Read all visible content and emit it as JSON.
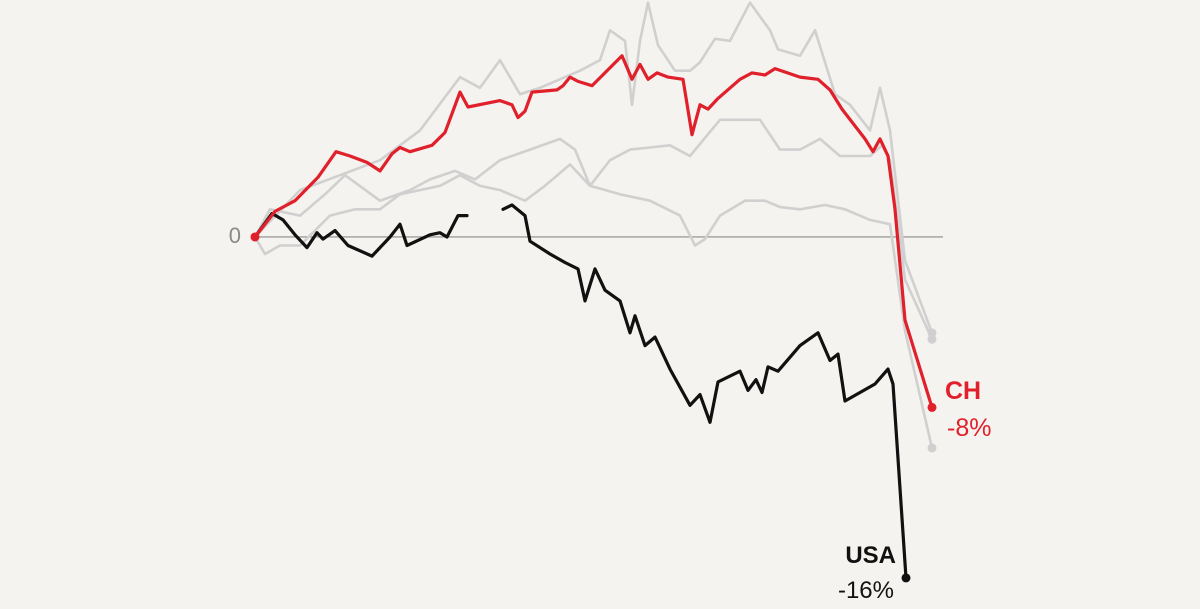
{
  "chart_data": {
    "type": "line",
    "xlim": [
      -25.5,
      94.5
    ],
    "ylim": [
      -17.46,
      11.12
    ],
    "yticks": [
      0
    ],
    "series": [
      {
        "color": "#d0d0d0",
        "x": [
          0,
          4.5,
          8.5,
          12.5,
          16.5,
          20.5,
          22.5,
          24.5,
          26.5,
          28.5,
          32.5,
          34.5,
          35.5,
          37,
          37.7,
          38.5,
          39.3,
          40.3,
          42,
          43.5,
          44.5,
          46,
          47.5,
          49.5,
          51.5,
          52.3,
          54.5,
          56,
          58,
          59.5,
          61.5,
          62.5,
          63.5,
          65,
          67.7
        ],
        "values": [
          0,
          2.2,
          2.9,
          3.6,
          5.0,
          7.5,
          7.0,
          8.3,
          6.7,
          7.0,
          7.8,
          8.3,
          9.7,
          9.2,
          6.2,
          9.2,
          11.0,
          9.0,
          7.8,
          7.8,
          8.2,
          9.3,
          9.2,
          11.0,
          9.7,
          8.8,
          8.5,
          9.7,
          6.7,
          6.2,
          5.0,
          7.0,
          5.0,
          -1.1,
          -4.5
        ]
      },
      {
        "color": "#d0d0d0",
        "x": [
          0,
          1.5,
          4.5,
          7,
          9,
          12.5,
          15.5,
          17.5,
          20,
          22,
          24.5,
          27.5,
          30.5,
          32,
          33.5,
          35.5,
          37.5,
          39.5,
          41.5,
          43.5,
          46.5,
          50.5,
          52.5,
          54.5,
          56.5,
          58.5,
          61.5,
          62.7,
          63.5,
          65,
          67.7
        ],
        "values": [
          0,
          1.3,
          1.0,
          2.0,
          2.9,
          1.7,
          2.2,
          2.7,
          3.1,
          2.7,
          3.6,
          4.1,
          4.6,
          4.1,
          2.4,
          3.6,
          4.1,
          4.2,
          4.3,
          3.8,
          5.5,
          5.5,
          4.1,
          4.1,
          4.6,
          3.8,
          3.8,
          4.3,
          3.6,
          -2.0,
          -4.8
        ]
      },
      {
        "color": "#d0d0d0",
        "x": [
          0,
          1,
          2.5,
          4.5,
          7.5,
          10,
          12.5,
          14.5,
          18.5,
          20.5,
          22.5,
          24.5,
          27,
          29,
          31.5,
          33.5,
          36.5,
          39.5,
          42.5,
          44,
          45,
          46.5,
          49,
          51,
          52.5,
          54.5,
          57,
          59,
          61.5,
          63.5,
          65,
          67.7
        ],
        "values": [
          0,
          -0.8,
          -0.4,
          -0.4,
          1.0,
          1.3,
          1.3,
          2.0,
          2.4,
          2.9,
          2.4,
          2.2,
          1.7,
          2.4,
          3.4,
          2.4,
          2.0,
          1.7,
          1.0,
          -0.4,
          -0.1,
          1.0,
          1.7,
          1.7,
          1.4,
          1.3,
          1.5,
          1.3,
          0.8,
          0.6,
          -4.4,
          -9.9
        ]
      },
      {
        "name": "USA",
        "color": "#111111",
        "end_label": "-16%",
        "x": [
          0,
          1.7,
          2.8,
          4,
          5.2,
          6.2,
          6.8,
          8,
          9.3,
          11.7,
          13.5,
          14.5,
          15.2,
          17.5,
          18.5,
          19.2,
          20.3,
          21.2,
          24,
          24.8,
          25.7,
          27,
          27.5,
          29.5,
          31,
          32.3,
          33,
          34,
          35,
          36.5,
          37.5,
          38,
          39,
          40,
          41.5,
          43.5,
          44.5,
          45.5,
          46.3,
          48.5,
          49.3,
          50.1,
          50.7,
          51.3,
          52.3,
          54.5,
          56.3,
          57.5,
          58.3,
          59,
          62,
          63.3,
          63.8,
          65.1
        ],
        "values": [
          0,
          1.1,
          0.8,
          0.1,
          -0.5,
          0.2,
          -0.1,
          0.3,
          -0.4,
          -0.9,
          0,
          0.6,
          -0.4,
          0.1,
          0.2,
          0,
          1.0,
          1.0,
          null,
          1.3,
          1.5,
          1.0,
          -0.2,
          -0.8,
          -1.2,
          -1.5,
          -3.0,
          -1.5,
          -2.5,
          -3.0,
          -4.5,
          -3.7,
          -5.1,
          -4.7,
          -6.2,
          -7.9,
          -7.4,
          -8.7,
          -6.8,
          -6.3,
          -7.2,
          -6.7,
          -7.3,
          -6.1,
          -6.3,
          -5.1,
          -4.5,
          -5.8,
          -5.5,
          -7.7,
          -6.9,
          -6.2,
          -6.9,
          -16
        ]
      },
      {
        "name": "CH",
        "color": "#e0202b",
        "end_label": "-8%",
        "x": [
          0,
          2,
          4,
          6.3,
          8.1,
          9.5,
          11.2,
          12.5,
          13.7,
          14.5,
          15.5,
          17.7,
          19,
          20.5,
          21.3,
          24.5,
          25.7,
          26.3,
          27,
          27.7,
          30.2,
          30.8,
          31.5,
          32.3,
          33.7,
          36.7,
          37.7,
          38.5,
          39.3,
          40.2,
          41.3,
          42.8,
          43.7,
          44.5,
          45.3,
          46.3,
          48.5,
          49.7,
          51,
          52,
          54.5,
          56.3,
          57.5,
          58.7,
          61,
          61.8,
          62.5,
          63.3,
          64,
          65,
          67.7
        ],
        "values": [
          0,
          1.2,
          1.7,
          2.8,
          4.0,
          3.8,
          3.5,
          3.1,
          3.9,
          4.2,
          4.0,
          4.3,
          4.9,
          6.8,
          6.1,
          6.4,
          6.2,
          5.6,
          5.9,
          6.8,
          6.9,
          7.1,
          7.5,
          7.3,
          7.1,
          8.5,
          7.4,
          8.1,
          7.4,
          7.7,
          7.5,
          7.4,
          4.8,
          6.2,
          6.0,
          6.5,
          7.4,
          7.7,
          7.6,
          7.9,
          7.5,
          7.4,
          6.9,
          6.0,
          4.6,
          4.0,
          4.6,
          3.8,
          1.3,
          -3.9,
          -8
        ]
      }
    ]
  }
}
